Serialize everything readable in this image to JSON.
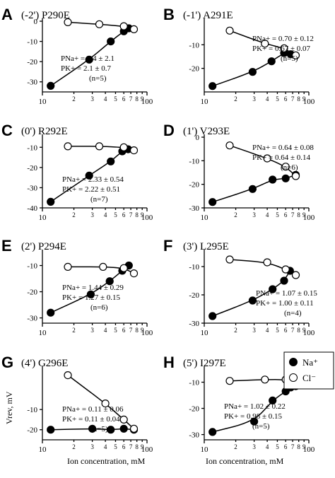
{
  "figure": {
    "xlabel": "Ion concentration, mM",
    "ylabel": "Vrev, mV",
    "legend": [
      {
        "label": "Na⁺",
        "marker": "filled"
      },
      {
        "label": "Cl⁻",
        "marker": "open"
      }
    ]
  },
  "chart_data": [
    {
      "id": "A",
      "type": "scatter",
      "label": "A",
      "title": "(-2') P290E",
      "xscale": "log",
      "xlim": [
        10,
        100
      ],
      "ylim": [
        -35,
        0
      ],
      "yticks": [
        0,
        -10,
        -20,
        -30
      ],
      "xtick_labels": [
        "10",
        "2",
        "3",
        "4",
        "5",
        "6",
        "7",
        "8",
        "9",
        "100"
      ],
      "series": [
        {
          "name": "Na⁺",
          "marker": "filled",
          "x": [
            12,
            28,
            45,
            60,
            67
          ],
          "y": [
            -32,
            -19,
            -10,
            -5,
            -3.5
          ]
        },
        {
          "name": "Cl⁻",
          "marker": "open",
          "x": [
            17.5,
            35,
            60,
            75
          ],
          "y": [
            -0.5,
            -1.5,
            -2.5,
            -4
          ]
        }
      ],
      "annotation": [
        "PNa+ = 3.4 ± 2.1",
        "PK+ = 2.1 ± 0.7",
        "(n=5)"
      ]
    },
    {
      "id": "B",
      "type": "scatter",
      "label": "B",
      "title": "(-1') A291E",
      "xscale": "log",
      "xlim": [
        10,
        100
      ],
      "ylim": [
        -30,
        0
      ],
      "yticks": [
        -10,
        -20
      ],
      "xtick_labels": [
        "10",
        "2",
        "3",
        "4",
        "5",
        "6",
        "7",
        "8",
        "9",
        "100"
      ],
      "series": [
        {
          "name": "Na⁺",
          "marker": "filled",
          "x": [
            12,
            29,
            44,
            58,
            67
          ],
          "y": [
            -27.5,
            -21.5,
            -17,
            -13.5,
            -14
          ]
        },
        {
          "name": "Cl⁻",
          "marker": "open",
          "x": [
            17.5,
            38,
            58,
            75
          ],
          "y": [
            -4,
            -9.5,
            -11.5,
            -14.5
          ]
        }
      ],
      "annotation": [
        "PNa+ = 0.70 ± 0.12",
        "PK+ = 0.67 ± 0.07",
        "(n=5)"
      ]
    },
    {
      "id": "C",
      "type": "scatter",
      "label": "C",
      "title": "(0') R292E",
      "xscale": "log",
      "xlim": [
        10,
        100
      ],
      "ylim": [
        -40,
        -5
      ],
      "yticks": [
        -10,
        -20,
        -30,
        -40
      ],
      "xtick_labels": [
        "10",
        "2",
        "3",
        "4",
        "5",
        "6",
        "7",
        "8",
        "9",
        "100"
      ],
      "series": [
        {
          "name": "Na⁺",
          "marker": "filled",
          "x": [
            12,
            28,
            45,
            58,
            66
          ],
          "y": [
            -37,
            -24,
            -17,
            -12,
            -11
          ]
        },
        {
          "name": "Cl⁻",
          "marker": "open",
          "x": [
            17.5,
            35,
            60,
            75
          ],
          "y": [
            -9.5,
            -9.5,
            -10,
            -11.5
          ]
        }
      ],
      "annotation": [
        "PNa+ = 2.33 ± 0.54",
        "PK+ = 2.22 ± 0.51",
        "(n=7)"
      ]
    },
    {
      "id": "D",
      "type": "scatter",
      "label": "D",
      "title": "(1') V293E",
      "xscale": "log",
      "xlim": [
        10,
        100
      ],
      "ylim": [
        -30,
        0
      ],
      "yticks": [
        0,
        -10,
        -20,
        -30
      ],
      "xtick_labels": [
        "10",
        "2",
        "3",
        "4",
        "5",
        "6",
        "7",
        "8",
        "9",
        "100"
      ],
      "series": [
        {
          "name": "Na⁺",
          "marker": "filled",
          "x": [
            12,
            29,
            45,
            60,
            75
          ],
          "y": [
            -27.5,
            -22,
            -18,
            -17.5,
            -16
          ]
        },
        {
          "name": "Cl⁻",
          "marker": "open",
          "x": [
            17.5,
            40,
            60,
            75
          ],
          "y": [
            -3.5,
            -9,
            -12.5,
            -16.5
          ]
        }
      ],
      "annotation": [
        "PNa+ = 0.64 ± 0.08",
        "PK+ = 0.64 ± 0.14",
        "(n=6)"
      ]
    },
    {
      "id": "E",
      "type": "scatter",
      "label": "E",
      "title": "(2') P294E",
      "xscale": "log",
      "xlim": [
        10,
        100
      ],
      "ylim": [
        -32,
        -5
      ],
      "yticks": [
        -10,
        -20,
        -30
      ],
      "xtick_labels": [
        "10",
        "2",
        "3",
        "4",
        "5",
        "6",
        "7",
        "8",
        "9",
        "100"
      ],
      "series": [
        {
          "name": "Na⁺",
          "marker": "filled",
          "x": [
            12,
            29,
            44,
            58,
            67
          ],
          "y": [
            -28,
            -21,
            -16,
            -12,
            -10
          ]
        },
        {
          "name": "Cl⁻",
          "marker": "open",
          "x": [
            17.5,
            38,
            60,
            75
          ],
          "y": [
            -10.5,
            -10.5,
            -11,
            -13
          ]
        }
      ],
      "annotation": [
        "PNa+ = 1.44 ± 0.29",
        "PK+ = 1.27 ± 0.15",
        "(n=6)"
      ]
    },
    {
      "id": "F",
      "type": "scatter",
      "label": "F",
      "title": "(3') L295E",
      "xscale": "log",
      "xlim": [
        10,
        100
      ],
      "ylim": [
        -30,
        -5
      ],
      "yticks": [
        -10,
        -20,
        -30
      ],
      "xtick_labels": [
        "10",
        "2",
        "3",
        "4",
        "5",
        "6",
        "7",
        "8",
        "9",
        "100"
      ],
      "series": [
        {
          "name": "Na⁺",
          "marker": "filled",
          "x": [
            12,
            29,
            45,
            58,
            66
          ],
          "y": [
            -27.5,
            -22,
            -18,
            -15,
            -11.5
          ]
        },
        {
          "name": "Cl⁻",
          "marker": "open",
          "x": [
            17.5,
            40,
            60,
            75
          ],
          "y": [
            -7.5,
            -8.5,
            -11,
            -13
          ]
        }
      ],
      "annotation": [
        "PNa+ = 1.07 ± 0.15",
        "PK+ = 1.00 ± 0.11",
        "(n=4)"
      ]
    },
    {
      "id": "G",
      "type": "scatter",
      "label": "G",
      "title": "(4') G296E",
      "xscale": "log",
      "xlim": [
        10,
        100
      ],
      "ylim": [
        -25,
        10
      ],
      "yticks": [
        -10,
        -20
      ],
      "xtick_labels": [
        "10",
        "2",
        "3",
        "4",
        "5",
        "6",
        "7",
        "8",
        "9",
        "100"
      ],
      "series": [
        {
          "name": "Na⁺",
          "marker": "filled",
          "x": [
            12,
            30,
            45,
            60,
            75
          ],
          "y": [
            -20,
            -19.5,
            -20,
            -19.5,
            -20
          ]
        },
        {
          "name": "Cl⁻",
          "marker": "open",
          "x": [
            17.5,
            40,
            60,
            75
          ],
          "y": [
            7,
            -7,
            -15,
            -19.5
          ]
        }
      ],
      "annotation": [
        "PNa+ = 0.11 ± 0.06",
        "PK+ = 0.11 ± 0.04",
        "(n=5)"
      ]
    },
    {
      "id": "H",
      "type": "scatter",
      "label": "H",
      "title": "(5') I297E",
      "xscale": "log",
      "xlim": [
        10,
        100
      ],
      "ylim": [
        -32,
        -5
      ],
      "yticks": [
        -10,
        -20,
        -30
      ],
      "xtick_labels": [
        "10",
        "2",
        "3",
        "4",
        "5",
        "6",
        "7",
        "8",
        "9",
        "100"
      ],
      "series": [
        {
          "name": "Na⁺",
          "marker": "filled",
          "x": [
            12,
            30,
            45,
            60,
            67
          ],
          "y": [
            -29,
            -25,
            -17,
            -13.5,
            -12
          ]
        },
        {
          "name": "Cl⁻",
          "marker": "open",
          "x": [
            17.5,
            38,
            60,
            75
          ],
          "y": [
            -9.5,
            -9,
            -9,
            -11.5
          ]
        }
      ],
      "annotation": [
        "PNa+ = 1.02 ± 0.22",
        "PK+ = 0.98 ± 0.15",
        "(n=5)"
      ]
    }
  ]
}
